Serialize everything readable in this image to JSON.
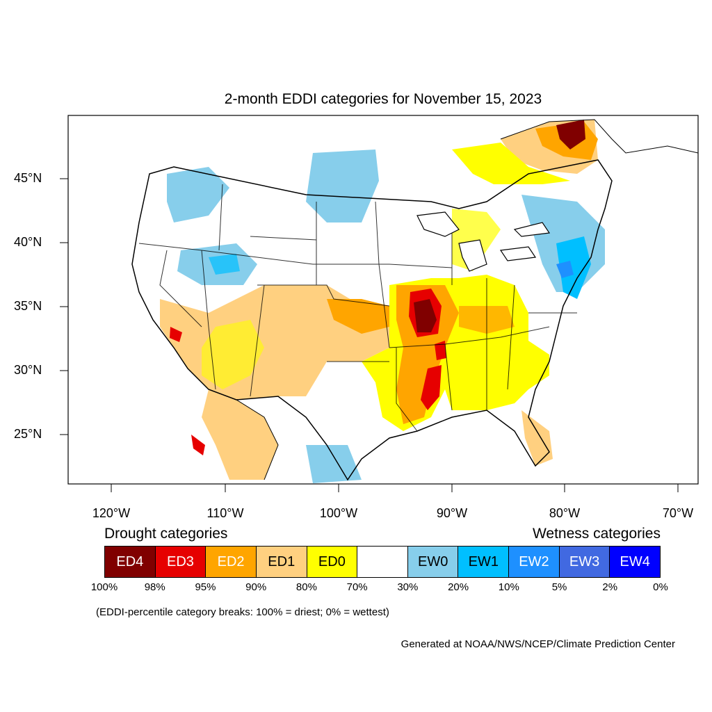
{
  "title": "2-month EDDI categories for November 15, 2023",
  "lat_labels": [
    "45°N",
    "40°N",
    "35°N",
    "30°N",
    "25°N"
  ],
  "lon_labels": [
    "120°W",
    "110°W",
    "100°W",
    "90°W",
    "80°W",
    "70°W"
  ],
  "legend": {
    "drought_title": "Drought categories",
    "wetness_title": "Wetness categories",
    "categories": [
      {
        "label": "ED4",
        "color": "#800000",
        "text_color": "#ffffff"
      },
      {
        "label": "ED3",
        "color": "#e60000",
        "text_color": "#ffffff"
      },
      {
        "label": "ED2",
        "color": "#ffa500",
        "text_color": "#ffffff"
      },
      {
        "label": "ED1",
        "color": "#ffd080",
        "text_color": "#000000"
      },
      {
        "label": "ED0",
        "color": "#ffff00",
        "text_color": "#000000"
      },
      {
        "label": "",
        "color": "#ffffff",
        "text_color": "#000000"
      },
      {
        "label": "EW0",
        "color": "#87ceeb",
        "text_color": "#000000"
      },
      {
        "label": "EW1",
        "color": "#00bfff",
        "text_color": "#000000"
      },
      {
        "label": "EW2",
        "color": "#1e90ff",
        "text_color": "#ffffff"
      },
      {
        "label": "EW3",
        "color": "#4169e1",
        "text_color": "#ffffff"
      },
      {
        "label": "EW4",
        "color": "#0000ff",
        "text_color": "#ffffff"
      }
    ],
    "percentiles": [
      "100%",
      "98%",
      "95%",
      "90%",
      "80%",
      "70%",
      "30%",
      "20%",
      "10%",
      "5%",
      "2%",
      "0%"
    ]
  },
  "note": "(EDDI-percentile category breaks: 100% = driest; 0% = wettest)",
  "credit": "Generated at NOAA/NWS/NCEP/Climate Prediction Center"
}
